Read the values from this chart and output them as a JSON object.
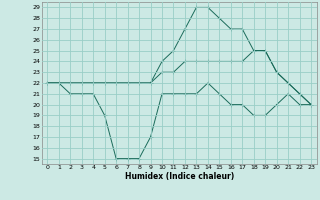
{
  "xlabel": "Humidex (Indice chaleur)",
  "background_color": "#cce9e4",
  "grid_color": "#99cec7",
  "line_color": "#1a6b5a",
  "xlim": [
    -0.5,
    23.5
  ],
  "ylim": [
    14.5,
    29.5
  ],
  "yticks": [
    15,
    16,
    17,
    18,
    19,
    20,
    21,
    22,
    23,
    24,
    25,
    26,
    27,
    28,
    29
  ],
  "xticks": [
    0,
    1,
    2,
    3,
    4,
    5,
    6,
    7,
    8,
    9,
    10,
    11,
    12,
    13,
    14,
    15,
    16,
    17,
    18,
    19,
    20,
    21,
    22,
    23
  ],
  "series": [
    [
      22,
      22,
      21,
      21,
      21,
      19,
      15,
      15,
      15,
      17,
      21,
      21,
      21,
      21,
      22,
      21,
      20,
      20,
      19,
      19,
      20,
      21,
      20,
      20
    ],
    [
      22,
      22,
      22,
      22,
      22,
      22,
      22,
      22,
      22,
      22,
      23,
      23,
      24,
      24,
      24,
      24,
      24,
      24,
      25,
      25,
      23,
      22,
      21,
      20
    ],
    [
      22,
      22,
      22,
      22,
      22,
      22,
      22,
      22,
      22,
      22,
      24,
      25,
      27,
      29,
      29,
      28,
      27,
      27,
      25,
      25,
      23,
      22,
      21,
      20
    ]
  ]
}
